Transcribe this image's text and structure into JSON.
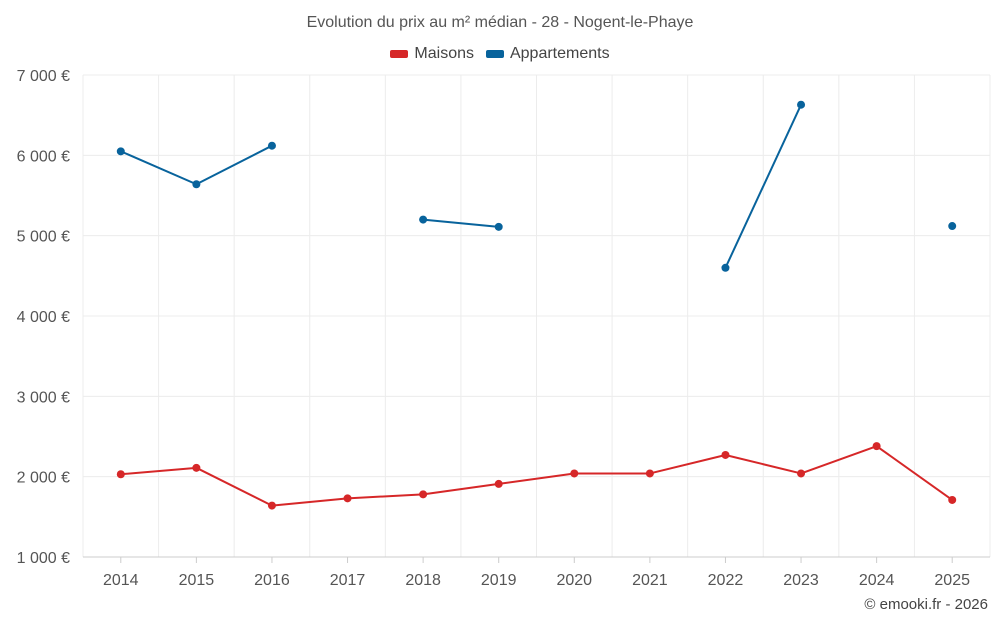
{
  "chart_data": {
    "type": "line",
    "title": "Evolution du prix au m² médian - 28 - Nogent-le-Phaye",
    "categories": [
      "2014",
      "2015",
      "2016",
      "2017",
      "2018",
      "2019",
      "2020",
      "2021",
      "2022",
      "2023",
      "2024",
      "2025"
    ],
    "ylim": [
      1000,
      7000
    ],
    "yticks": [
      1000,
      2000,
      3000,
      4000,
      5000,
      6000,
      7000
    ],
    "ytick_labels": [
      "1 000 €",
      "2 000 €",
      "3 000 €",
      "4 000 €",
      "5 000 €",
      "6 000 €",
      "7 000 €"
    ],
    "grid": true,
    "legend_position": "top-center",
    "series": [
      {
        "name": "Maisons",
        "color": "#d62728",
        "values": [
          2030,
          2110,
          1640,
          1730,
          1780,
          1910,
          2040,
          2040,
          2270,
          2040,
          2380,
          1710
        ]
      },
      {
        "name": "Appartements",
        "color": "#08639c",
        "values": [
          6050,
          5640,
          6120,
          null,
          5200,
          5110,
          null,
          null,
          4600,
          6630,
          null,
          5120
        ]
      }
    ]
  },
  "credit": "© emooki.fr - 2026"
}
